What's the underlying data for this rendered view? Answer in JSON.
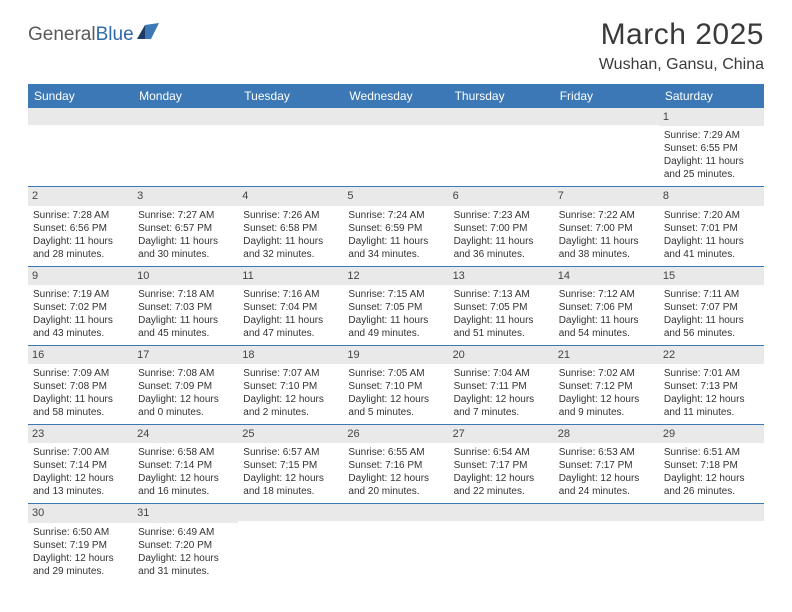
{
  "logo": {
    "text1": "General",
    "text2": "Blue"
  },
  "title": "March 2025",
  "location": "Wushan, Gansu, China",
  "header_bg": "#3b78b5",
  "daynum_bg": "#e9e9e9",
  "day_names": [
    "Sunday",
    "Monday",
    "Tuesday",
    "Wednesday",
    "Thursday",
    "Friday",
    "Saturday"
  ],
  "weeks": [
    [
      {
        "day": ""
      },
      {
        "day": ""
      },
      {
        "day": ""
      },
      {
        "day": ""
      },
      {
        "day": ""
      },
      {
        "day": ""
      },
      {
        "day": "1",
        "sunrise": "Sunrise: 7:29 AM",
        "sunset": "Sunset: 6:55 PM",
        "d1": "Daylight: 11 hours",
        "d2": "and 25 minutes."
      }
    ],
    [
      {
        "day": "2",
        "sunrise": "Sunrise: 7:28 AM",
        "sunset": "Sunset: 6:56 PM",
        "d1": "Daylight: 11 hours",
        "d2": "and 28 minutes."
      },
      {
        "day": "3",
        "sunrise": "Sunrise: 7:27 AM",
        "sunset": "Sunset: 6:57 PM",
        "d1": "Daylight: 11 hours",
        "d2": "and 30 minutes."
      },
      {
        "day": "4",
        "sunrise": "Sunrise: 7:26 AM",
        "sunset": "Sunset: 6:58 PM",
        "d1": "Daylight: 11 hours",
        "d2": "and 32 minutes."
      },
      {
        "day": "5",
        "sunrise": "Sunrise: 7:24 AM",
        "sunset": "Sunset: 6:59 PM",
        "d1": "Daylight: 11 hours",
        "d2": "and 34 minutes."
      },
      {
        "day": "6",
        "sunrise": "Sunrise: 7:23 AM",
        "sunset": "Sunset: 7:00 PM",
        "d1": "Daylight: 11 hours",
        "d2": "and 36 minutes."
      },
      {
        "day": "7",
        "sunrise": "Sunrise: 7:22 AM",
        "sunset": "Sunset: 7:00 PM",
        "d1": "Daylight: 11 hours",
        "d2": "and 38 minutes."
      },
      {
        "day": "8",
        "sunrise": "Sunrise: 7:20 AM",
        "sunset": "Sunset: 7:01 PM",
        "d1": "Daylight: 11 hours",
        "d2": "and 41 minutes."
      }
    ],
    [
      {
        "day": "9",
        "sunrise": "Sunrise: 7:19 AM",
        "sunset": "Sunset: 7:02 PM",
        "d1": "Daylight: 11 hours",
        "d2": "and 43 minutes."
      },
      {
        "day": "10",
        "sunrise": "Sunrise: 7:18 AM",
        "sunset": "Sunset: 7:03 PM",
        "d1": "Daylight: 11 hours",
        "d2": "and 45 minutes."
      },
      {
        "day": "11",
        "sunrise": "Sunrise: 7:16 AM",
        "sunset": "Sunset: 7:04 PM",
        "d1": "Daylight: 11 hours",
        "d2": "and 47 minutes."
      },
      {
        "day": "12",
        "sunrise": "Sunrise: 7:15 AM",
        "sunset": "Sunset: 7:05 PM",
        "d1": "Daylight: 11 hours",
        "d2": "and 49 minutes."
      },
      {
        "day": "13",
        "sunrise": "Sunrise: 7:13 AM",
        "sunset": "Sunset: 7:05 PM",
        "d1": "Daylight: 11 hours",
        "d2": "and 51 minutes."
      },
      {
        "day": "14",
        "sunrise": "Sunrise: 7:12 AM",
        "sunset": "Sunset: 7:06 PM",
        "d1": "Daylight: 11 hours",
        "d2": "and 54 minutes."
      },
      {
        "day": "15",
        "sunrise": "Sunrise: 7:11 AM",
        "sunset": "Sunset: 7:07 PM",
        "d1": "Daylight: 11 hours",
        "d2": "and 56 minutes."
      }
    ],
    [
      {
        "day": "16",
        "sunrise": "Sunrise: 7:09 AM",
        "sunset": "Sunset: 7:08 PM",
        "d1": "Daylight: 11 hours",
        "d2": "and 58 minutes."
      },
      {
        "day": "17",
        "sunrise": "Sunrise: 7:08 AM",
        "sunset": "Sunset: 7:09 PM",
        "d1": "Daylight: 12 hours",
        "d2": "and 0 minutes."
      },
      {
        "day": "18",
        "sunrise": "Sunrise: 7:07 AM",
        "sunset": "Sunset: 7:10 PM",
        "d1": "Daylight: 12 hours",
        "d2": "and 2 minutes."
      },
      {
        "day": "19",
        "sunrise": "Sunrise: 7:05 AM",
        "sunset": "Sunset: 7:10 PM",
        "d1": "Daylight: 12 hours",
        "d2": "and 5 minutes."
      },
      {
        "day": "20",
        "sunrise": "Sunrise: 7:04 AM",
        "sunset": "Sunset: 7:11 PM",
        "d1": "Daylight: 12 hours",
        "d2": "and 7 minutes."
      },
      {
        "day": "21",
        "sunrise": "Sunrise: 7:02 AM",
        "sunset": "Sunset: 7:12 PM",
        "d1": "Daylight: 12 hours",
        "d2": "and 9 minutes."
      },
      {
        "day": "22",
        "sunrise": "Sunrise: 7:01 AM",
        "sunset": "Sunset: 7:13 PM",
        "d1": "Daylight: 12 hours",
        "d2": "and 11 minutes."
      }
    ],
    [
      {
        "day": "23",
        "sunrise": "Sunrise: 7:00 AM",
        "sunset": "Sunset: 7:14 PM",
        "d1": "Daylight: 12 hours",
        "d2": "and 13 minutes."
      },
      {
        "day": "24",
        "sunrise": "Sunrise: 6:58 AM",
        "sunset": "Sunset: 7:14 PM",
        "d1": "Daylight: 12 hours",
        "d2": "and 16 minutes."
      },
      {
        "day": "25",
        "sunrise": "Sunrise: 6:57 AM",
        "sunset": "Sunset: 7:15 PM",
        "d1": "Daylight: 12 hours",
        "d2": "and 18 minutes."
      },
      {
        "day": "26",
        "sunrise": "Sunrise: 6:55 AM",
        "sunset": "Sunset: 7:16 PM",
        "d1": "Daylight: 12 hours",
        "d2": "and 20 minutes."
      },
      {
        "day": "27",
        "sunrise": "Sunrise: 6:54 AM",
        "sunset": "Sunset: 7:17 PM",
        "d1": "Daylight: 12 hours",
        "d2": "and 22 minutes."
      },
      {
        "day": "28",
        "sunrise": "Sunrise: 6:53 AM",
        "sunset": "Sunset: 7:17 PM",
        "d1": "Daylight: 12 hours",
        "d2": "and 24 minutes."
      },
      {
        "day": "29",
        "sunrise": "Sunrise: 6:51 AM",
        "sunset": "Sunset: 7:18 PM",
        "d1": "Daylight: 12 hours",
        "d2": "and 26 minutes."
      }
    ],
    [
      {
        "day": "30",
        "sunrise": "Sunrise: 6:50 AM",
        "sunset": "Sunset: 7:19 PM",
        "d1": "Daylight: 12 hours",
        "d2": "and 29 minutes."
      },
      {
        "day": "31",
        "sunrise": "Sunrise: 6:49 AM",
        "sunset": "Sunset: 7:20 PM",
        "d1": "Daylight: 12 hours",
        "d2": "and 31 minutes."
      },
      {
        "day": ""
      },
      {
        "day": ""
      },
      {
        "day": ""
      },
      {
        "day": ""
      },
      {
        "day": ""
      }
    ]
  ]
}
